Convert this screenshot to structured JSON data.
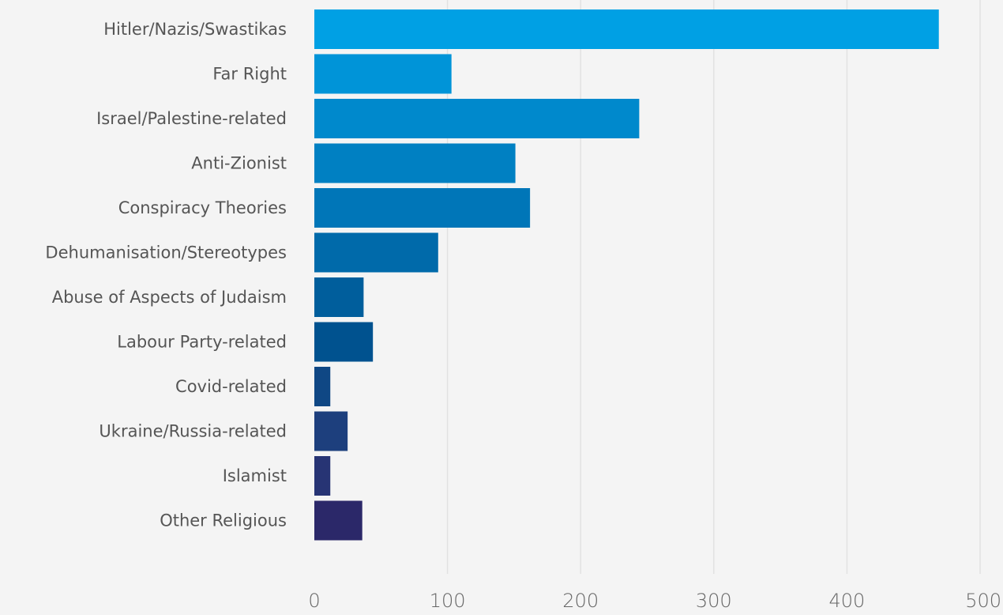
{
  "chart_data": {
    "type": "bar",
    "orientation": "horizontal",
    "title": "",
    "xlabel": "",
    "ylabel": "",
    "categories": [
      "Hitler/Nazis/Swastikas",
      "Far Right",
      "Israel/Palestine-related",
      "Anti-Zionist",
      "Conspiracy Theories",
      "Dehumanisation/Stereotypes",
      "Abuse of Aspects of Judaism",
      "Labour Party-related",
      "Covid-related",
      "Ukraine/Russia-related",
      "Islamist",
      "Other Religious"
    ],
    "values": [
      469,
      103,
      244,
      151,
      162,
      93,
      37,
      44,
      12,
      25,
      12,
      36
    ],
    "xlim": [
      0,
      500
    ],
    "xticks": [
      0,
      100,
      200,
      300,
      400,
      500
    ],
    "xtick_labels": [
      "0",
      "100",
      "200",
      "300",
      "400",
      "500"
    ],
    "grid": "vertical",
    "legend": "none",
    "colors": [
      "#00a0e4",
      "#0094d8",
      "#0089cc",
      "#0080c2",
      "#0076b8",
      "#006aaa",
      "#005e9c",
      "#00528f",
      "#0f4784",
      "#1d3f7d",
      "#273474",
      "#2b2869"
    ]
  }
}
